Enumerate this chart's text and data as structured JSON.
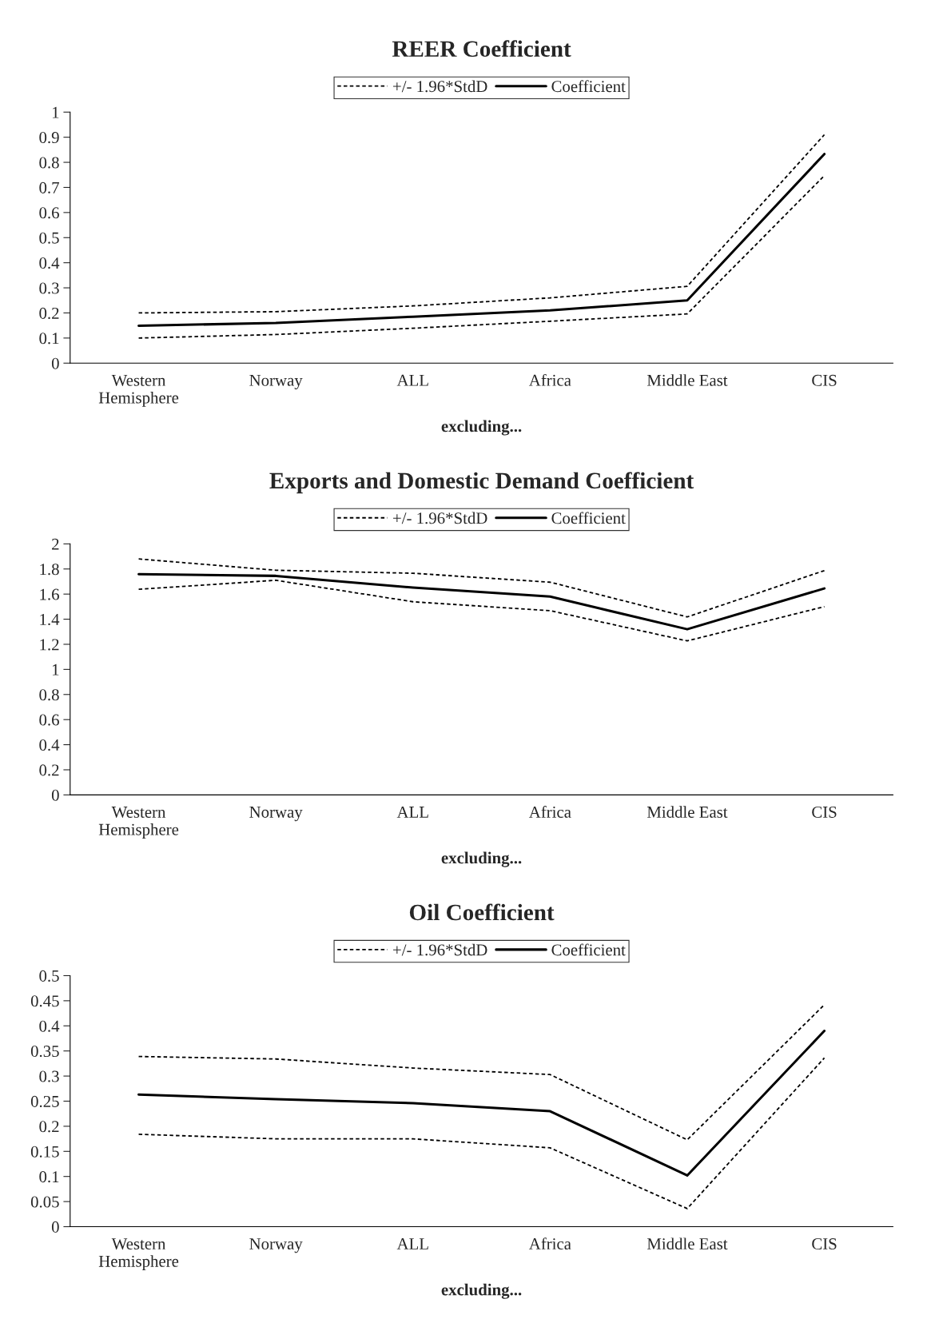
{
  "chart_data": [
    {
      "type": "line",
      "title": "REER Coefficient",
      "xlabel": "excluding...",
      "categories": [
        "Western\nHemisphere",
        "Norway",
        "ALL",
        "Africa",
        "Middle East",
        "CIS"
      ],
      "ylim": [
        0,
        1
      ],
      "yticks": [
        0,
        0.1,
        0.2,
        0.3,
        0.4,
        0.5,
        0.6,
        0.7,
        0.8,
        0.9,
        1
      ],
      "grid": false,
      "legend": "top",
      "marker": "none",
      "series": [
        {
          "name": "+/- 1.96*StdD",
          "color": "#000000",
          "line_style": "dashed",
          "values": [
            0.2,
            0.205,
            0.228,
            0.26,
            0.306,
            0.91
          ]
        },
        {
          "name": "Coefficient",
          "color": "#000000",
          "line_style": "solid",
          "values": [
            0.149,
            0.16,
            0.185,
            0.21,
            0.25,
            0.833
          ]
        },
        {
          "color": "#000000",
          "line_style": "dashed",
          "values": [
            0.1,
            0.114,
            0.139,
            0.167,
            0.196,
            0.747
          ]
        }
      ]
    },
    {
      "type": "line",
      "title": "Exports and Domestic Demand Coefficient",
      "xlabel": "excluding...",
      "categories": [
        "Western\nHemisphere",
        "Norway",
        "ALL",
        "Africa",
        "Middle East",
        "CIS"
      ],
      "ylim": [
        0,
        2
      ],
      "yticks": [
        0,
        0.2,
        0.4,
        0.6,
        0.8,
        1,
        1.2,
        1.4,
        1.6,
        1.8,
        2
      ],
      "grid": false,
      "legend": "top",
      "marker": "none",
      "series": [
        {
          "name": "+/- 1.96*StdD",
          "color": "#000000",
          "line_style": "dashed",
          "values": [
            1.88,
            1.79,
            1.766,
            1.695,
            1.418,
            1.787
          ]
        },
        {
          "name": "Coefficient",
          "color": "#000000",
          "line_style": "solid",
          "values": [
            1.759,
            1.745,
            1.652,
            1.58,
            1.32,
            1.645
          ]
        },
        {
          "color": "#000000",
          "line_style": "dashed",
          "values": [
            1.638,
            1.71,
            1.539,
            1.468,
            1.227,
            1.5
          ]
        }
      ]
    },
    {
      "type": "line",
      "title": "Oil Coefficient",
      "xlabel": "excluding...",
      "categories": [
        "Western\nHemisphere",
        "Norway",
        "ALL",
        "Africa",
        "Middle East",
        "CIS"
      ],
      "ylim": [
        0,
        0.5
      ],
      "yticks": [
        0,
        0.05,
        0.1,
        0.15,
        0.2,
        0.25,
        0.3,
        0.35,
        0.4,
        0.45,
        0.5
      ],
      "grid": false,
      "legend": "top",
      "marker": "none",
      "series": [
        {
          "name": "+/- 1.96*StdD",
          "color": "#000000",
          "line_style": "dashed",
          "values": [
            0.339,
            0.334,
            0.316,
            0.303,
            0.173,
            0.442
          ]
        },
        {
          "name": "Coefficient",
          "color": "#000000",
          "line_style": "solid",
          "values": [
            0.263,
            0.254,
            0.246,
            0.23,
            0.102,
            0.39
          ]
        },
        {
          "color": "#000000",
          "line_style": "dashed",
          "values": [
            0.184,
            0.175,
            0.175,
            0.157,
            0.036,
            0.336
          ]
        }
      ]
    }
  ]
}
